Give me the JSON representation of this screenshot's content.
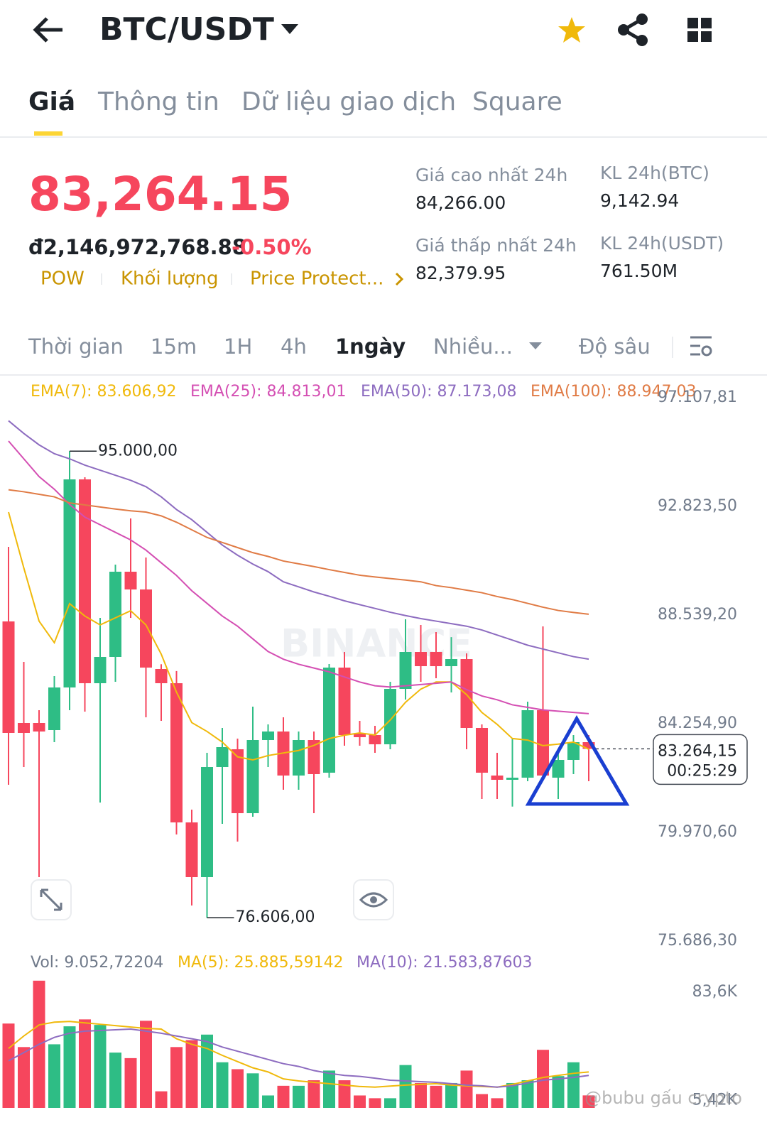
{
  "header": {
    "pair": "BTC/USDT"
  },
  "tabs": [
    "Giá",
    "Thông tin",
    "Dữ liệu giao dịch",
    "Square"
  ],
  "price": {
    "last": "83,264.15",
    "fiat": "đ2,146,972,768.88",
    "change": "-0.50%",
    "tags": [
      "POW",
      "Khối lượng",
      "Price Protect..."
    ]
  },
  "stats": [
    {
      "label": "Giá cao nhất 24h",
      "value": "84,266.00"
    },
    {
      "label": "KL 24h(BTC)",
      "value": "9,142.94"
    },
    {
      "label": "Giá thấp nhất 24h",
      "value": "82,379.95"
    },
    {
      "label": "KL 24h(USDT)",
      "value": "761.50M"
    }
  ],
  "intervals": [
    "Thời gian",
    "15m",
    "1H",
    "4h",
    "1ngày",
    "Nhiều...",
    "Độ sâu"
  ],
  "watermark": "BINANCE",
  "credit": "@bubu gấu crypto",
  "chart_data": [
    {
      "type": "candlestick",
      "open": [
        88288,
        84284,
        84284,
        84004,
        85684,
        93888,
        85852,
        86888,
        90248,
        89548,
        86412,
        85852,
        80364,
        78208,
        82548,
        83248,
        80728,
        83612,
        83948,
        82212,
        83612,
        82324,
        86468,
        83864,
        83808,
        83444,
        85628,
        87084,
        87084,
        86524,
        86804,
        84088,
        82212,
        82044,
        82128,
        84788,
        82128,
        82828,
        83528
      ],
      "high": [
        91228,
        86692,
        84788,
        86132,
        95000,
        93972,
        88428,
        90528,
        92348,
        90808,
        86600,
        86332,
        80868,
        83108,
        84088,
        83668,
        84928,
        84228,
        84508,
        83948,
        83948,
        86608,
        87084,
        84368,
        84172,
        85908,
        88372,
        88148,
        87868,
        87668,
        87028,
        84228,
        83108,
        83668,
        85124,
        88092,
        83108,
        83808,
        83808
      ],
      "low": [
        81848,
        82548,
        78208,
        83528,
        84788,
        84732,
        81148,
        85908,
        88428,
        84508,
        84368,
        79888,
        77088,
        76606,
        80308,
        79608,
        80588,
        82548,
        81652,
        81652,
        80728,
        82128,
        83388,
        83388,
        83108,
        83248,
        85208,
        85908,
        86048,
        85488,
        83248,
        81288,
        81288,
        80988,
        81988,
        82044,
        81288,
        82268,
        81988
      ],
      "close": [
        83892,
        83892,
        83948,
        85684,
        93888,
        85852,
        86888,
        90248,
        89548,
        86468,
        85852,
        80364,
        78208,
        82548,
        83332,
        80728,
        83612,
        83948,
        82212,
        83612,
        82268,
        86468,
        83808,
        83724,
        83444,
        85628,
        87084,
        86524,
        86524,
        86804,
        84088,
        82324,
        82044,
        82128,
        84788,
        82212,
        82828,
        83528,
        83264.15
      ],
      "up_color": "#2ebd85",
      "down_color": "#f6465d",
      "series": [
        {
          "name": "EMA(7): 83.606,92",
          "color": "#f0b90b",
          "values": [
            92600,
            90400,
            88300,
            87450,
            88990,
            88500,
            88150,
            88430,
            88710,
            88150,
            87000,
            85500,
            84300,
            83950,
            83530,
            82950,
            82830,
            83000,
            83100,
            83200,
            83400,
            83670,
            83800,
            83890,
            83810,
            84400,
            85100,
            85620,
            85900,
            85900,
            85400,
            84700,
            84230,
            83670,
            83610,
            83390,
            83450,
            83530,
            83250
          ]
        },
        {
          "name": "EMA(25): 84.813,01",
          "color": "#d44fb3",
          "values": [
            95400,
            94700,
            94000,
            93500,
            92900,
            92400,
            92100,
            91800,
            91500,
            91100,
            90600,
            90100,
            89500,
            89000,
            88500,
            88100,
            87600,
            87100,
            86800,
            86600,
            86450,
            86300,
            86100,
            85900,
            85750,
            85700,
            85750,
            85800,
            85850,
            85900,
            85600,
            85350,
            85200,
            85000,
            84900,
            84800,
            84750,
            84700,
            84650
          ]
        },
        {
          "name": "EMA(50): 87.173,08",
          "color": "#8d6cc0",
          "values": [
            96200,
            95700,
            95250,
            94900,
            94700,
            94450,
            94250,
            94050,
            93850,
            93600,
            93200,
            92700,
            92300,
            91800,
            91300,
            90900,
            90550,
            90250,
            89850,
            89650,
            89450,
            89280,
            89100,
            88950,
            88800,
            88650,
            88520,
            88400,
            88300,
            88200,
            88100,
            87950,
            87750,
            87550,
            87350,
            87200,
            87050,
            86900,
            86800
          ]
        },
        {
          "name": "EMA(100): 88.947,03",
          "color": "#e07b45",
          "values": [
            93480,
            93400,
            93300,
            93200,
            92960,
            92880,
            92800,
            92720,
            92650,
            92600,
            92450,
            92200,
            91900,
            91600,
            91400,
            91200,
            91000,
            90850,
            90670,
            90560,
            90450,
            90330,
            90220,
            90110,
            90040,
            89980,
            89920,
            89850,
            89700,
            89620,
            89520,
            89420,
            89270,
            89150,
            89000,
            88850,
            88720,
            88640,
            88570
          ]
        }
      ],
      "ylim": [
        75268,
        97948
      ],
      "yticks": [
        {
          "value": 97107.81,
          "label": "97.107,81"
        },
        {
          "value": 92823.5,
          "label": "92.823,50"
        },
        {
          "value": 88539.2,
          "label": "88.539,20"
        },
        {
          "value": 84254.9,
          "label": "84.254,90"
        },
        {
          "value": 79970.6,
          "label": "79.970,60"
        },
        {
          "value": 75686.3,
          "label": "75.686,30"
        }
      ],
      "high_label": {
        "value": 95000,
        "label": "95.000,00"
      },
      "low_label": {
        "value": 76606,
        "label": "76.606,00"
      },
      "current": {
        "value": 83264.15,
        "label": "83.264,15",
        "countdown": "00:25:29"
      }
    },
    {
      "type": "bar",
      "title": "Vol: 9.052,72204",
      "values": [
        61000,
        44000,
        92000,
        46000,
        59000,
        64000,
        60000,
        40000,
        36000,
        63000,
        12000,
        44000,
        49000,
        53000,
        33000,
        28000,
        25000,
        9000,
        16000,
        16000,
        20000,
        27000,
        20000,
        9000,
        7000,
        7000,
        31000,
        18000,
        16000,
        18000,
        27000,
        10000,
        7000,
        18000,
        20000,
        42000,
        23000,
        33000,
        9052.72204
      ],
      "series": [
        {
          "name": "MA(5): 25.885,59142",
          "color": "#f0b90b",
          "values": [
            43000,
            52000,
            60000,
            62000,
            62500,
            61500,
            60500,
            59500,
            58500,
            57500,
            57000,
            50000,
            46000,
            43000,
            38000,
            33500,
            29000,
            26000,
            21000,
            19500,
            18500,
            17500,
            16500,
            15500,
            15000,
            15800,
            16500,
            17000,
            17500,
            16500,
            16000,
            15500,
            15000,
            17000,
            19500,
            22000,
            23500,
            25000,
            26000
          ]
        },
        {
          "name": "MA(10): 21.583,87603",
          "color": "#8d6cc0",
          "values": [
            34000,
            40000,
            46000,
            51000,
            54000,
            55500,
            56000,
            56500,
            57000,
            55500,
            54000,
            52000,
            50000,
            48000,
            44000,
            41000,
            38000,
            35000,
            32000,
            30000,
            27000,
            25000,
            23500,
            22800,
            21500,
            20000,
            19500,
            19000,
            18500,
            17500,
            16500,
            16000,
            15000,
            16000,
            18000,
            20000,
            21000,
            22000,
            23500
          ]
        }
      ],
      "ylim": [
        0,
        95000
      ],
      "yticks": [
        {
          "value": 83600,
          "label": "83,6K"
        },
        {
          "value": 5420,
          "label": "5,42K"
        }
      ]
    }
  ]
}
